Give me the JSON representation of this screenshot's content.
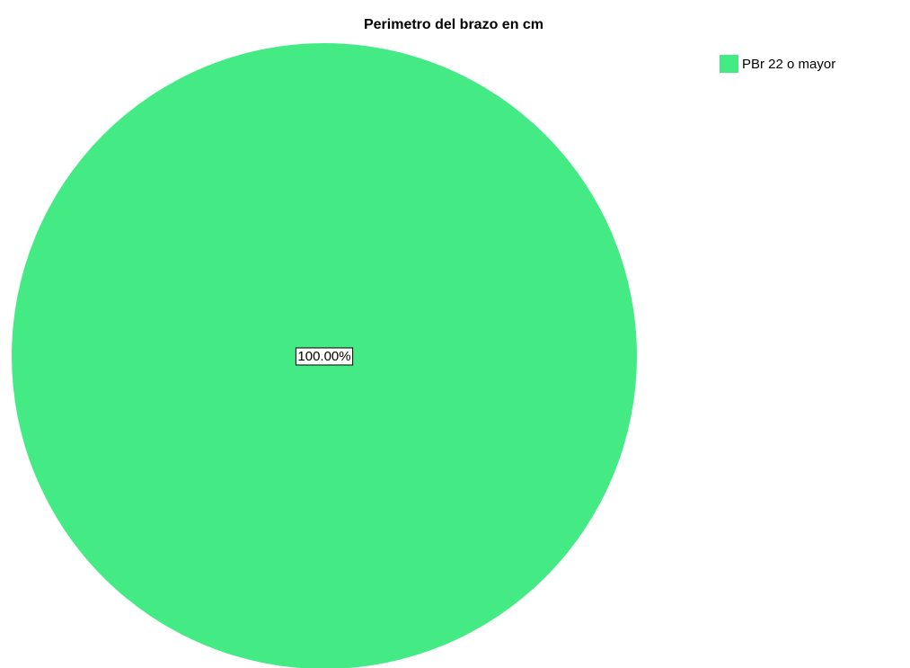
{
  "chart_data": {
    "type": "pie",
    "title": "Perimetro del brazo en cm",
    "categories": [
      "PBr 22 o mayor"
    ],
    "values": [
      100
    ],
    "value_labels": [
      "100.00%"
    ],
    "colors": [
      "#44eb84"
    ],
    "legend": "top-right"
  }
}
